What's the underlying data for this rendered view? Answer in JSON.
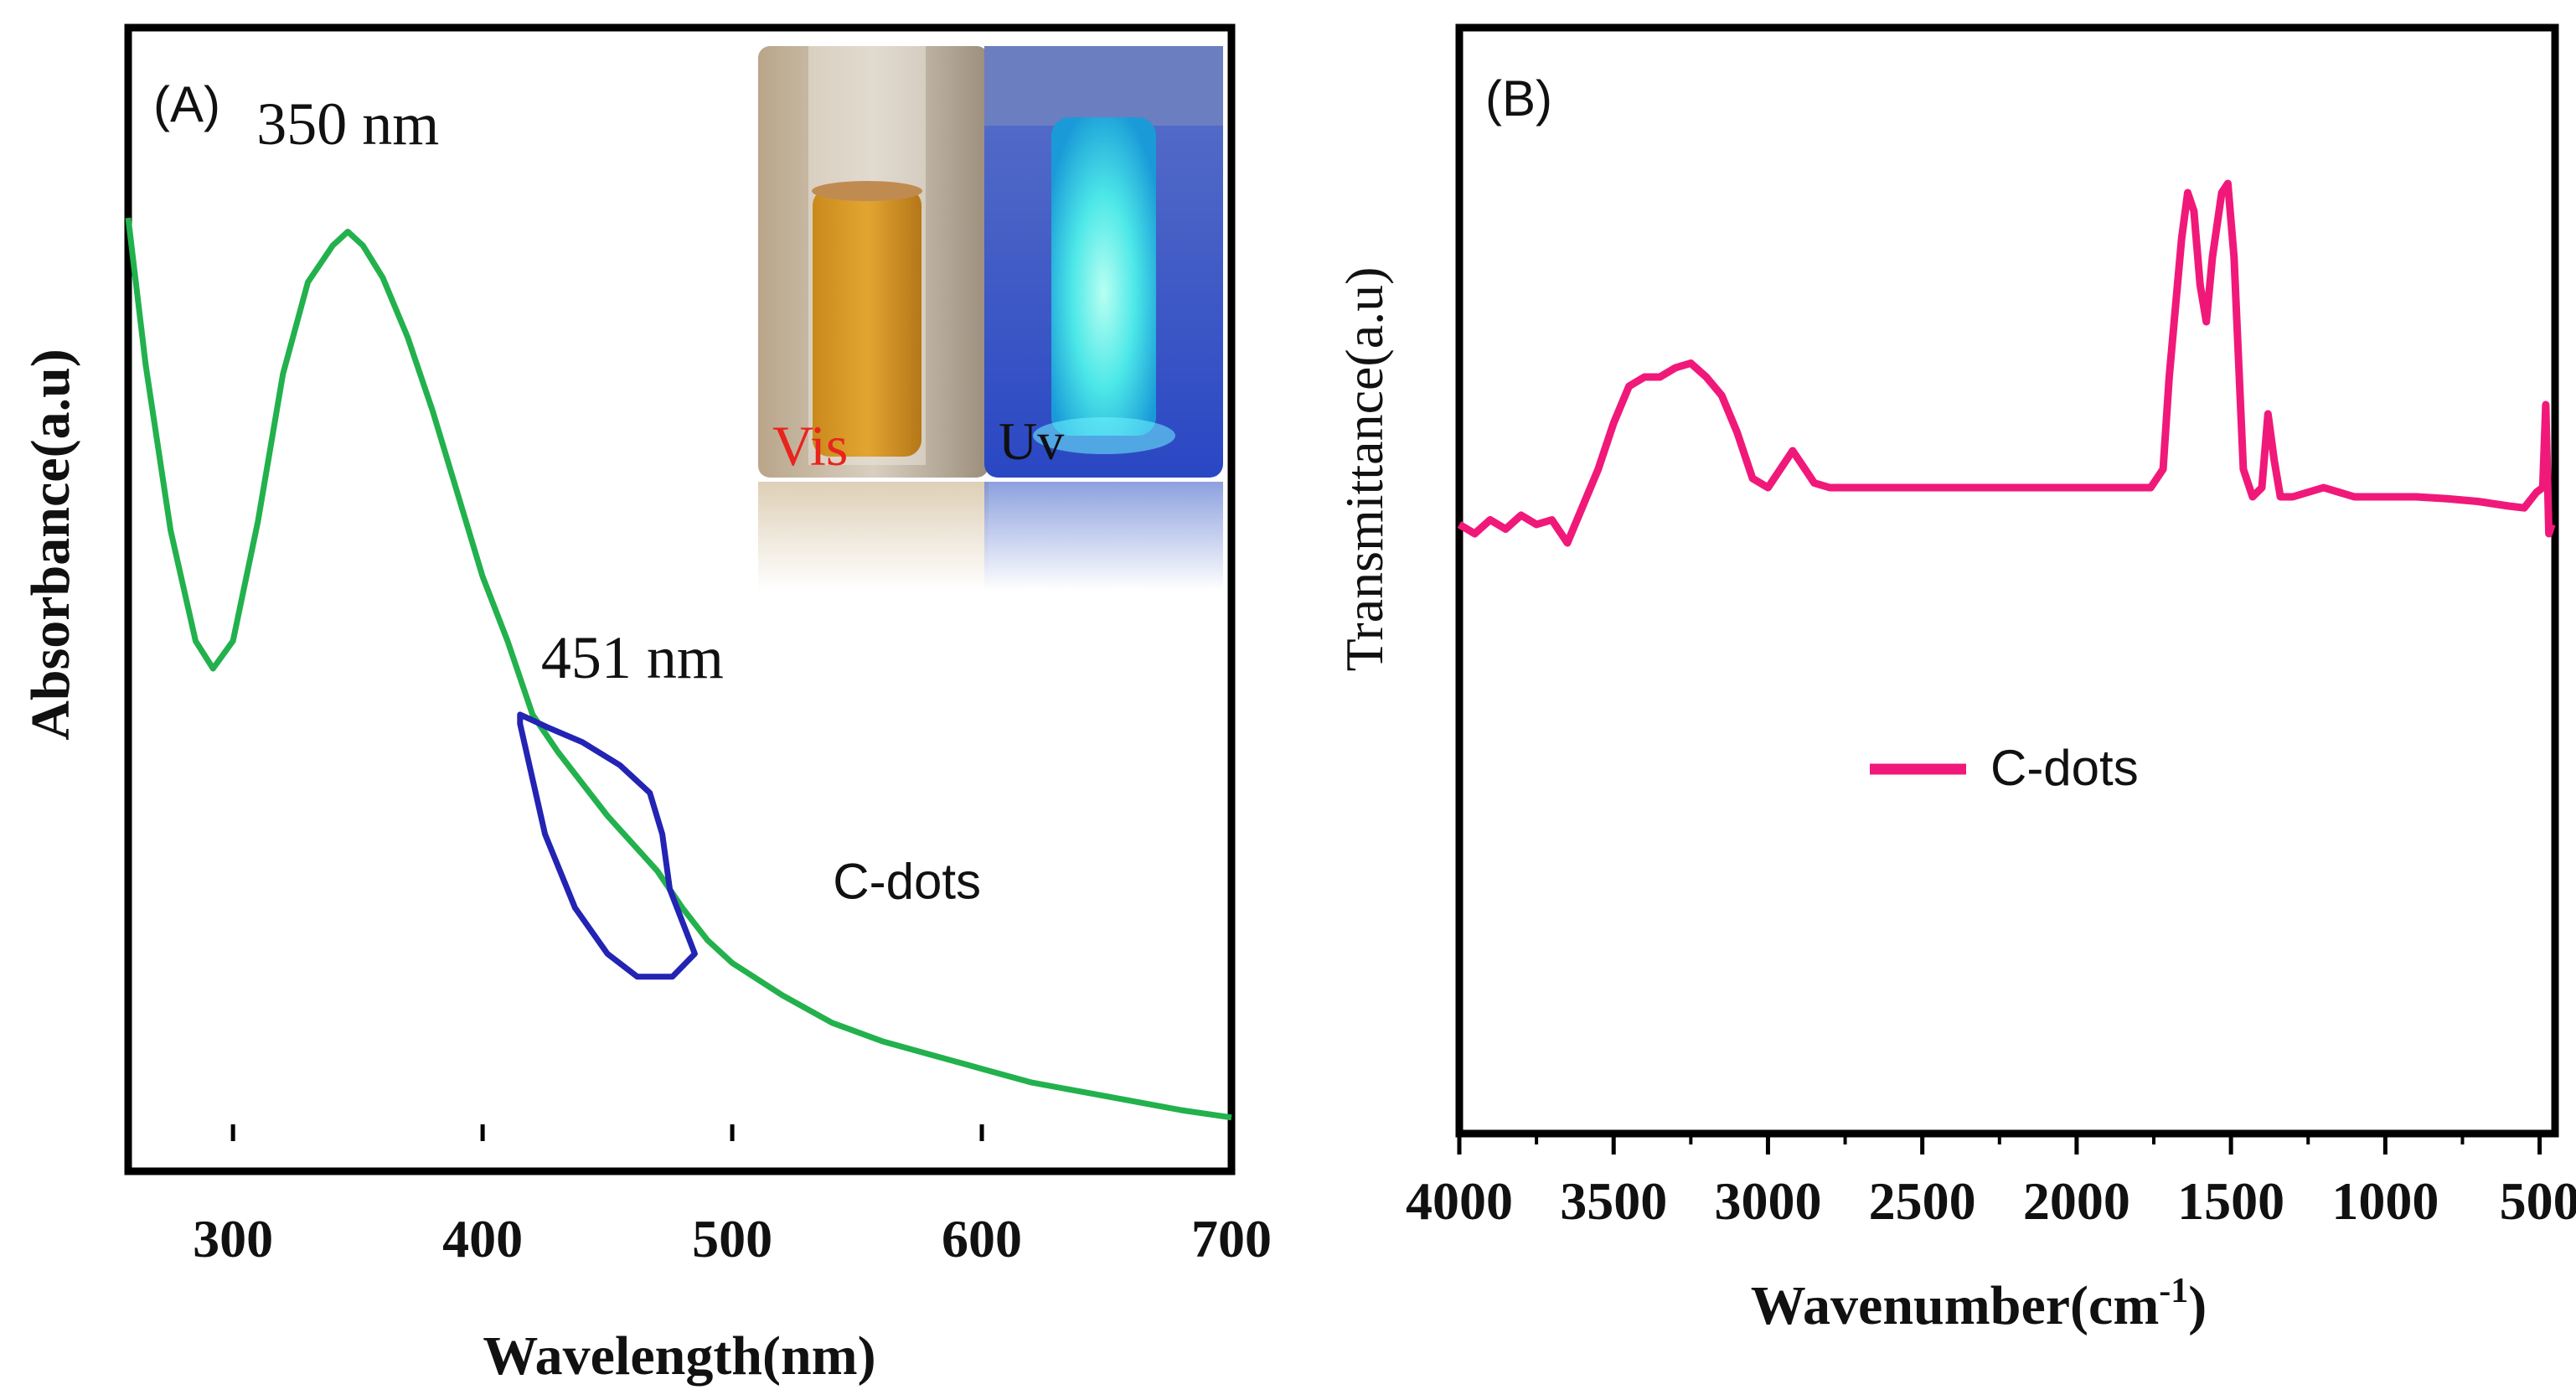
{
  "chart_data": [
    {
      "type": "line",
      "panel_label": "(A)",
      "title": "",
      "xlabel": "Wavelength(nm)",
      "ylabel": "Absorbance(a.u)",
      "xlim": [
        258,
        700
      ],
      "ylim": [
        0,
        1
      ],
      "xticks": [
        "300",
        "400",
        "500",
        "600",
        "700"
      ],
      "y_ticks_shown": false,
      "series": [
        {
          "name": "C-dots",
          "color": "#22b14c",
          "x": [
            258,
            265,
            275,
            285,
            292,
            300,
            310,
            320,
            330,
            340,
            346,
            352,
            360,
            370,
            380,
            390,
            400,
            410,
            420,
            430,
            440,
            450,
            460,
            470,
            480,
            490,
            500,
            520,
            540,
            560,
            580,
            600,
            620,
            640,
            660,
            680,
            700
          ],
          "y": [
            1.0,
            0.84,
            0.66,
            0.54,
            0.51,
            0.54,
            0.67,
            0.83,
            0.93,
            0.97,
            0.985,
            0.97,
            0.935,
            0.87,
            0.79,
            0.7,
            0.61,
            0.54,
            0.46,
            0.42,
            0.385,
            0.35,
            0.32,
            0.29,
            0.25,
            0.215,
            0.19,
            0.155,
            0.125,
            0.105,
            0.09,
            0.075,
            0.06,
            0.05,
            0.04,
            0.03,
            0.022
          ]
        }
      ],
      "highlight": {
        "label": "451 nm",
        "color": "#2323b4",
        "outline": [
          [
            415,
            0.46
          ],
          [
            427,
            0.445
          ],
          [
            440,
            0.43
          ],
          [
            455,
            0.405
          ],
          [
            467,
            0.375
          ],
          [
            472,
            0.33
          ],
          [
            475,
            0.27
          ],
          [
            485,
            0.2
          ],
          [
            476,
            0.175
          ],
          [
            462,
            0.175
          ],
          [
            450,
            0.2
          ],
          [
            437,
            0.25
          ],
          [
            425,
            0.33
          ],
          [
            415,
            0.45
          ]
        ]
      },
      "annotations": [
        {
          "text": "350 nm",
          "x": 346,
          "y": 1.08
        },
        {
          "text": "451 nm",
          "x": 460,
          "y": 0.5
        },
        {
          "text": "C-dots",
          "x": 570,
          "y": 0.26
        }
      ],
      "inset": {
        "vis_label": "Vis",
        "uv_label": "Uv",
        "vis_label_color": "#e8241c",
        "uv_label_color": "#101010"
      }
    },
    {
      "type": "line",
      "panel_label": "(B)",
      "title": "",
      "xlabel": "Wavenumber(cm",
      "xlabel_superscript": "-1",
      "xlabel_suffix": ")",
      "ylabel": "Transmittance(a.u)",
      "xlim": [
        4000,
        450
      ],
      "ylim": [
        0,
        1
      ],
      "xticks": [
        "4000",
        "3500",
        "3000",
        "2500",
        "2000",
        "1500",
        "1000",
        "500"
      ],
      "y_ticks_shown": false,
      "legend": {
        "label": "C-dots",
        "placement": "center"
      },
      "series": [
        {
          "name": "C-dots",
          "color": "#f0197a",
          "x": [
            4000,
            3950,
            3900,
            3850,
            3800,
            3750,
            3700,
            3650,
            3600,
            3550,
            3500,
            3450,
            3400,
            3350,
            3300,
            3250,
            3200,
            3150,
            3100,
            3050,
            3000,
            2950,
            2920,
            2880,
            2850,
            2800,
            2700,
            2500,
            2300,
            2100,
            1900,
            1760,
            1720,
            1700,
            1660,
            1640,
            1620,
            1600,
            1580,
            1560,
            1530,
            1510,
            1490,
            1460,
            1430,
            1400,
            1380,
            1360,
            1340,
            1300,
            1200,
            1100,
            1000,
            900,
            800,
            700,
            600,
            550,
            510,
            490,
            480,
            470,
            460
          ],
          "y": [
            0.64,
            0.63,
            0.645,
            0.635,
            0.65,
            0.64,
            0.645,
            0.62,
            0.66,
            0.7,
            0.75,
            0.79,
            0.8,
            0.8,
            0.81,
            0.815,
            0.8,
            0.78,
            0.74,
            0.69,
            0.68,
            0.705,
            0.72,
            0.7,
            0.685,
            0.68,
            0.68,
            0.68,
            0.68,
            0.68,
            0.68,
            0.68,
            0.7,
            0.8,
            0.95,
            1.0,
            0.98,
            0.9,
            0.86,
            0.93,
            1.0,
            1.01,
            0.93,
            0.7,
            0.67,
            0.68,
            0.76,
            0.71,
            0.67,
            0.67,
            0.68,
            0.67,
            0.67,
            0.67,
            0.668,
            0.665,
            0.66,
            0.658,
            0.675,
            0.68,
            0.77,
            0.63,
            0.64
          ]
        }
      ]
    }
  ]
}
